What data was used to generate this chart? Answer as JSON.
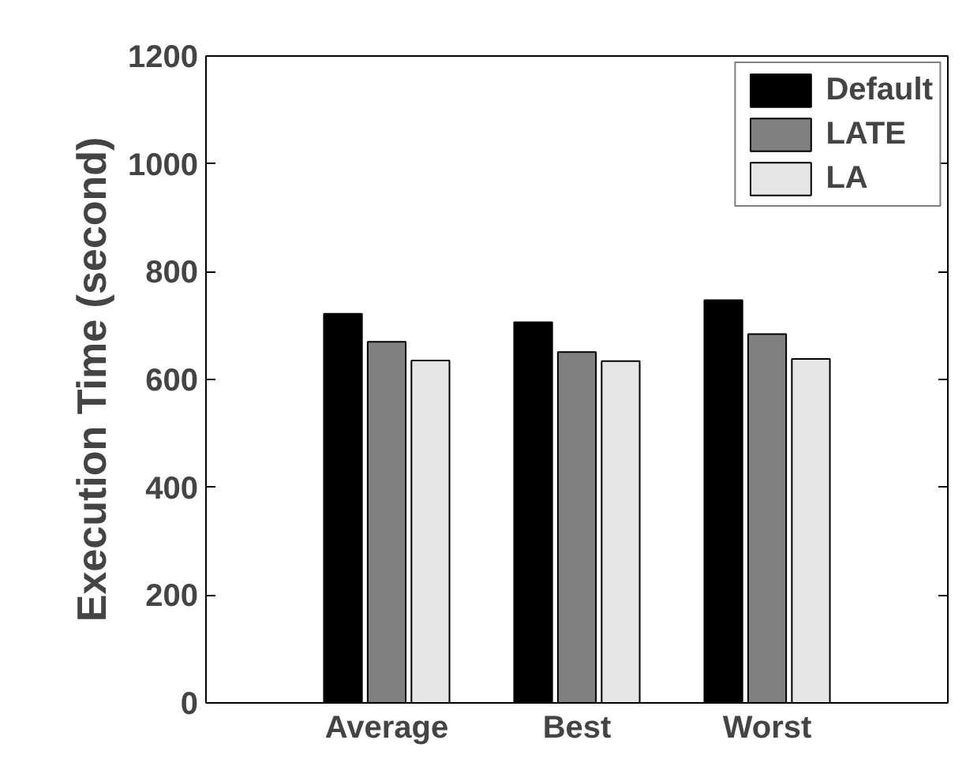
{
  "chart_data": {
    "type": "bar",
    "ylabel": "Execution Time (second)",
    "categories": [
      "Average",
      "Best",
      "Worst"
    ],
    "series": [
      {
        "name": "Default",
        "color": "#000000",
        "values": [
          722,
          706,
          747
        ]
      },
      {
        "name": "LATE",
        "color": "#808080",
        "values": [
          670,
          651,
          684
        ]
      },
      {
        "name": "LA",
        "color": "#e6e6e6",
        "values": [
          635,
          634,
          638
        ]
      }
    ],
    "ylim": [
      0,
      1200
    ],
    "yticks": [
      0,
      200,
      400,
      600,
      800,
      1000,
      1200
    ],
    "grid": false,
    "legend": "top right"
  }
}
